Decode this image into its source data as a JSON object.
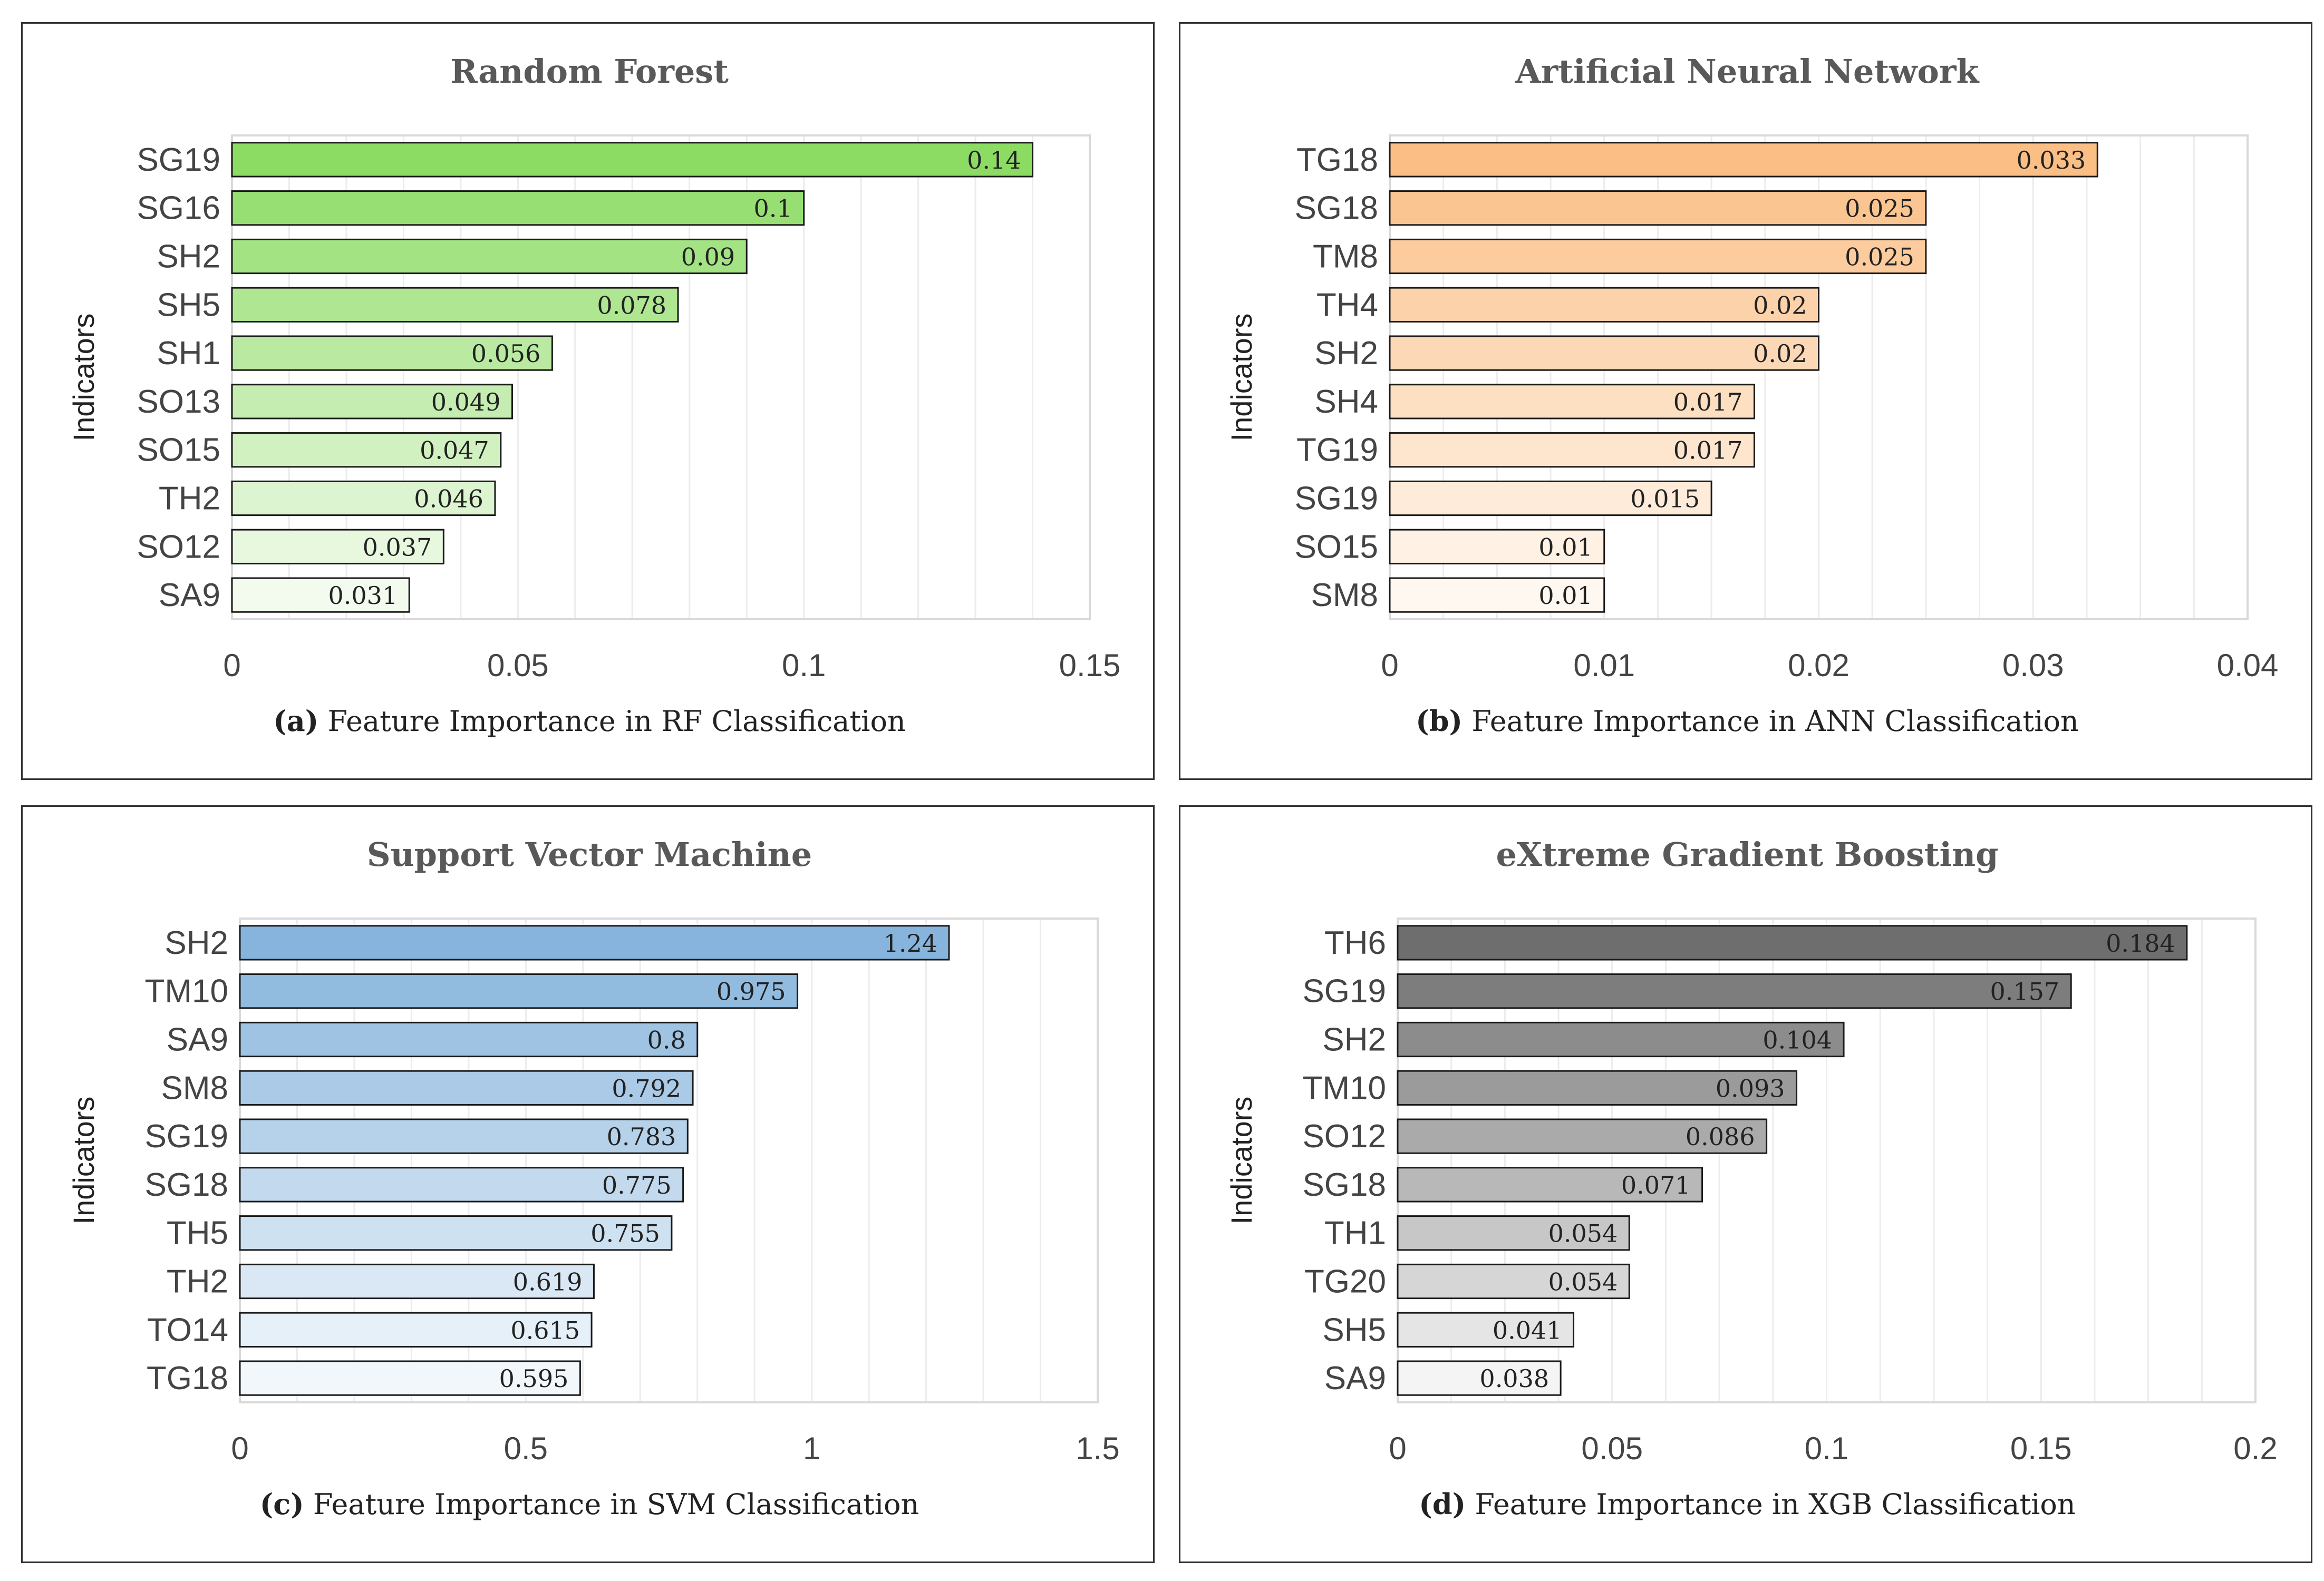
{
  "chart_data": [
    {
      "type": "bar",
      "orientation": "horizontal",
      "title": "Random Forest",
      "caption_tag": "(a)",
      "caption_text": " Feature Importance in RF Classification",
      "ylabel": "Indicators",
      "xlim": [
        0,
        0.15
      ],
      "ticks": [
        "0",
        "0.05",
        "0.1",
        "0.15"
      ],
      "tick_values": [
        0,
        0.05,
        0.1,
        0.15
      ],
      "minor_step": 0.01,
      "categories": [
        "SG19",
        "SG16",
        "SH2",
        "SH5",
        "SH1",
        "SO13",
        "SO15",
        "TH2",
        "SO12",
        "SA9"
      ],
      "values": [
        0.14,
        0.1,
        0.09,
        0.078,
        0.056,
        0.049,
        0.047,
        0.046,
        0.037,
        0.031
      ],
      "value_labels": [
        "0.14",
        "0.1",
        "0.09",
        "0.078",
        "0.056",
        "0.049",
        "0.047",
        "0.046",
        "0.037",
        "0.031"
      ],
      "color_dark": "#8cdc64",
      "color_light": "#f3fbee"
    },
    {
      "type": "bar",
      "orientation": "horizontal",
      "title": "Artificial Neural Network",
      "caption_tag": "(b)",
      "caption_text": " Feature Importance in ANN Classification",
      "ylabel": "Indicators",
      "xlim": [
        0,
        0.04
      ],
      "ticks": [
        "0",
        "0.01",
        "0.02",
        "0.03",
        "0.04"
      ],
      "tick_values": [
        0,
        0.01,
        0.02,
        0.03,
        0.04
      ],
      "minor_step": 0.0025,
      "categories": [
        "TG18",
        "SG18",
        "TM8",
        "TH4",
        "SH2",
        "SH4",
        "TG19",
        "SG19",
        "SO15",
        "SM8"
      ],
      "values": [
        0.033,
        0.025,
        0.025,
        0.02,
        0.02,
        0.017,
        0.017,
        0.015,
        0.01,
        0.01
      ],
      "value_labels": [
        "0.033",
        "0.025",
        "0.025",
        "0.02",
        "0.02",
        "0.017",
        "0.017",
        "0.015",
        "0.01",
        "0.01"
      ],
      "color_dark": "#fbbf86",
      "color_light": "#fff8f1"
    },
    {
      "type": "bar",
      "orientation": "horizontal",
      "title": "Support Vector Machine",
      "caption_tag": "(c)",
      "caption_text": " Feature Importance in SVM Classification",
      "ylabel": "Indicators",
      "xlim": [
        0,
        1.5
      ],
      "ticks": [
        "0",
        "0.5",
        "1",
        "1.5"
      ],
      "tick_values": [
        0,
        0.5,
        1,
        1.5
      ],
      "minor_step": 0.1,
      "categories": [
        "SH2",
        "TM10",
        "SA9",
        "SM8",
        "SG19",
        "SG18",
        "TH5",
        "TH2",
        "TO14",
        "TG18"
      ],
      "values": [
        1.24,
        0.975,
        0.8,
        0.792,
        0.783,
        0.775,
        0.755,
        0.619,
        0.615,
        0.595
      ],
      "value_labels": [
        "1.24",
        "0.975",
        "0.8",
        "0.792",
        "0.783",
        "0.775",
        "0.755",
        "0.619",
        "0.615",
        "0.595"
      ],
      "color_dark": "#86b4dc",
      "color_light": "#f2f7fc"
    },
    {
      "type": "bar",
      "orientation": "horizontal",
      "title": "eXtreme Gradient Boosting",
      "caption_tag": "(d)",
      "caption_text": " Feature Importance in XGB Classification",
      "ylabel": "Indicators",
      "xlim": [
        0,
        0.2
      ],
      "ticks": [
        "0",
        "0.05",
        "0.1",
        "0.15",
        "0.2"
      ],
      "tick_values": [
        0,
        0.05,
        0.1,
        0.15,
        0.2
      ],
      "minor_step": 0.0125,
      "categories": [
        "TH6",
        "SG19",
        "SH2",
        "TM10",
        "SO12",
        "SG18",
        "TH1",
        "TG20",
        "SH5",
        "SA9"
      ],
      "values": [
        0.184,
        0.157,
        0.104,
        0.093,
        0.086,
        0.071,
        0.054,
        0.054,
        0.041,
        0.038
      ],
      "value_labels": [
        "0.184",
        "0.157",
        "0.104",
        "0.093",
        "0.086",
        "0.071",
        "0.054",
        "0.054",
        "0.041",
        "0.038"
      ],
      "color_dark": "#6e6e6e",
      "color_light": "#f4f4f4"
    }
  ]
}
